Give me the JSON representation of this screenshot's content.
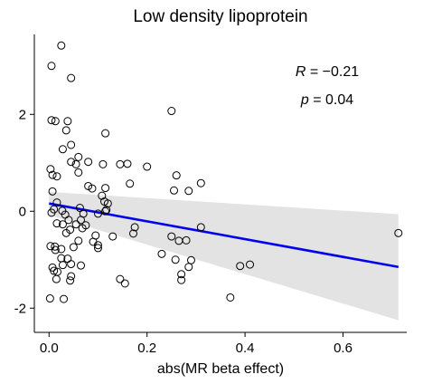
{
  "chart_data": {
    "type": "scatter",
    "title": "Low density lipoprotein",
    "xlabel": "abs(MR beta effect)",
    "ylabel": "",
    "xlim": [
      -0.03,
      0.73
    ],
    "ylim": [
      -2.5,
      3.65
    ],
    "x_ticks": [
      0.0,
      0.2,
      0.4,
      0.6
    ],
    "x_tick_labels": [
      "0.0",
      "0.2",
      "0.4",
      "0.6"
    ],
    "y_ticks": [
      -2,
      0,
      2
    ],
    "y_tick_labels": [
      "-2",
      "0",
      "2"
    ],
    "grid": false,
    "annotations": {
      "r_label": "R",
      "r_value": " = −0.21",
      "p_label": "p",
      "p_value": " = 0.04"
    },
    "fit": {
      "x": [
        0.0,
        0.713
      ],
      "y": [
        0.16,
        -1.15
      ],
      "ci_lower": [
        -0.08,
        -2.25
      ],
      "ci_upper": [
        0.4,
        -0.06
      ],
      "color": "#0000ee",
      "band_color": "#e3e3e3"
    },
    "points": [
      [
        0.025,
        3.42
      ],
      [
        0.005,
        3.0
      ],
      [
        0.045,
        2.75
      ],
      [
        0.25,
        2.07
      ],
      [
        0.005,
        1.88
      ],
      [
        0.013,
        1.86
      ],
      [
        0.038,
        1.86
      ],
      [
        0.035,
        1.67
      ],
      [
        0.115,
        1.61
      ],
      [
        0.045,
        1.37
      ],
      [
        0.028,
        1.28
      ],
      [
        0.06,
        1.12
      ],
      [
        0.045,
        1.02
      ],
      [
        0.055,
        0.97
      ],
      [
        0.08,
        1.02
      ],
      [
        0.11,
        0.97
      ],
      [
        0.145,
        0.97
      ],
      [
        0.16,
        0.98
      ],
      [
        0.2,
        0.92
      ],
      [
        0.003,
        0.87
      ],
      [
        0.007,
        0.75
      ],
      [
        0.016,
        0.72
      ],
      [
        0.26,
        0.74
      ],
      [
        0.06,
        0.8
      ],
      [
        0.31,
        0.58
      ],
      [
        0.165,
        0.57
      ],
      [
        0.08,
        0.52
      ],
      [
        0.088,
        0.47
      ],
      [
        0.115,
        0.48
      ],
      [
        0.007,
        0.41
      ],
      [
        0.255,
        0.43
      ],
      [
        0.285,
        0.42
      ],
      [
        0.108,
        0.32
      ],
      [
        0.016,
        0.18
      ],
      [
        0.113,
        0.2
      ],
      [
        0.12,
        0.16
      ],
      [
        0.063,
        0.07
      ],
      [
        0.01,
        0.04
      ],
      [
        0.027,
        0.01
      ],
      [
        0.117,
        0.03
      ],
      [
        0.005,
        -0.03
      ],
      [
        0.033,
        -0.07
      ],
      [
        0.07,
        -0.05
      ],
      [
        0.1,
        -0.05
      ],
      [
        0.115,
        0.0
      ],
      [
        0.04,
        -0.18
      ],
      [
        0.065,
        -0.18
      ],
      [
        0.016,
        -0.25
      ],
      [
        0.028,
        -0.27
      ],
      [
        0.055,
        -0.27
      ],
      [
        0.075,
        -0.29
      ],
      [
        0.043,
        -0.38
      ],
      [
        0.068,
        -0.35
      ],
      [
        0.175,
        -0.33
      ],
      [
        0.31,
        -0.33
      ],
      [
        0.035,
        -0.45
      ],
      [
        0.095,
        -0.5
      ],
      [
        0.13,
        -0.52
      ],
      [
        0.25,
        -0.52
      ],
      [
        0.06,
        -0.61
      ],
      [
        0.09,
        -0.63
      ],
      [
        0.265,
        -0.61
      ],
      [
        0.28,
        -0.6
      ],
      [
        0.172,
        -0.46
      ],
      [
        0.003,
        -0.72
      ],
      [
        0.012,
        -0.73
      ],
      [
        0.05,
        -0.74
      ],
      [
        0.013,
        -0.8
      ],
      [
        0.025,
        -0.78
      ],
      [
        0.1,
        -0.7
      ],
      [
        0.1,
        -0.76
      ],
      [
        0.23,
        -0.88
      ],
      [
        0.025,
        -0.97
      ],
      [
        0.038,
        -0.98
      ],
      [
        0.258,
        -1.0
      ],
      [
        0.29,
        -1.01
      ],
      [
        0.007,
        -1.16
      ],
      [
        0.028,
        -1.11
      ],
      [
        0.045,
        -1.09
      ],
      [
        0.065,
        -1.12
      ],
      [
        0.285,
        -1.15
      ],
      [
        0.01,
        -1.23
      ],
      [
        0.017,
        -1.25
      ],
      [
        0.045,
        -1.34
      ],
      [
        0.145,
        -1.4
      ],
      [
        0.27,
        -1.3
      ],
      [
        0.39,
        -1.13
      ],
      [
        0.41,
        -1.1
      ],
      [
        0.015,
        -1.4
      ],
      [
        0.043,
        -1.43
      ],
      [
        0.155,
        -1.49
      ],
      [
        0.27,
        -1.42
      ],
      [
        0.002,
        -1.8
      ],
      [
        0.03,
        -1.81
      ],
      [
        0.37,
        -1.78
      ],
      [
        0.713,
        -0.45
      ]
    ]
  }
}
